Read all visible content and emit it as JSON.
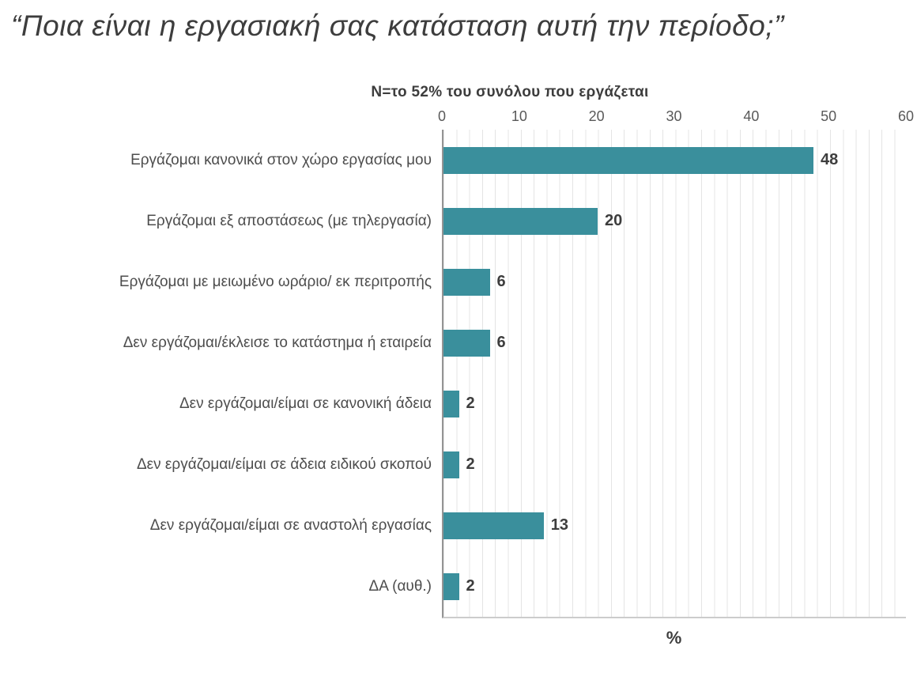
{
  "title": "“Ποια είναι η εργασιακή σας κατάσταση αυτή την περίοδο;”",
  "chart_data": {
    "type": "bar",
    "orientation": "horizontal",
    "subtitle": "N=το 52% του συνόλου που εργάζεται",
    "categories": [
      "Εργάζομαι κανονικά στον χώρο εργασίας μου",
      "Εργάζομαι εξ αποστάσεως (με τηλεργασία)",
      "Εργάζομαι με μειωμένο ωράριο/ εκ περιτροπής",
      "Δεν εργάζομαι/έκλεισε το κατάστημα ή εταιρεία",
      "Δεν εργάζομαι/είμαι σε κανονική άδεια",
      "Δεν εργάζομαι/είμαι σε άδεια ειδικού σκοπού",
      "Δεν εργάζομαι/είμαι σε αναστολή εργασίας",
      "ΔΑ (αυθ.)"
    ],
    "values": [
      48,
      20,
      6,
      6,
      2,
      2,
      13,
      2
    ],
    "x_ticks": [
      0,
      10,
      20,
      30,
      40,
      50,
      60
    ],
    "xlim": [
      0,
      60
    ],
    "xlabel": "%",
    "bar_color": "#3a8f9c",
    "grid": "minor-vertical-lines",
    "gridline_color": "#e4e4e4",
    "value_labels_shown": true
  }
}
